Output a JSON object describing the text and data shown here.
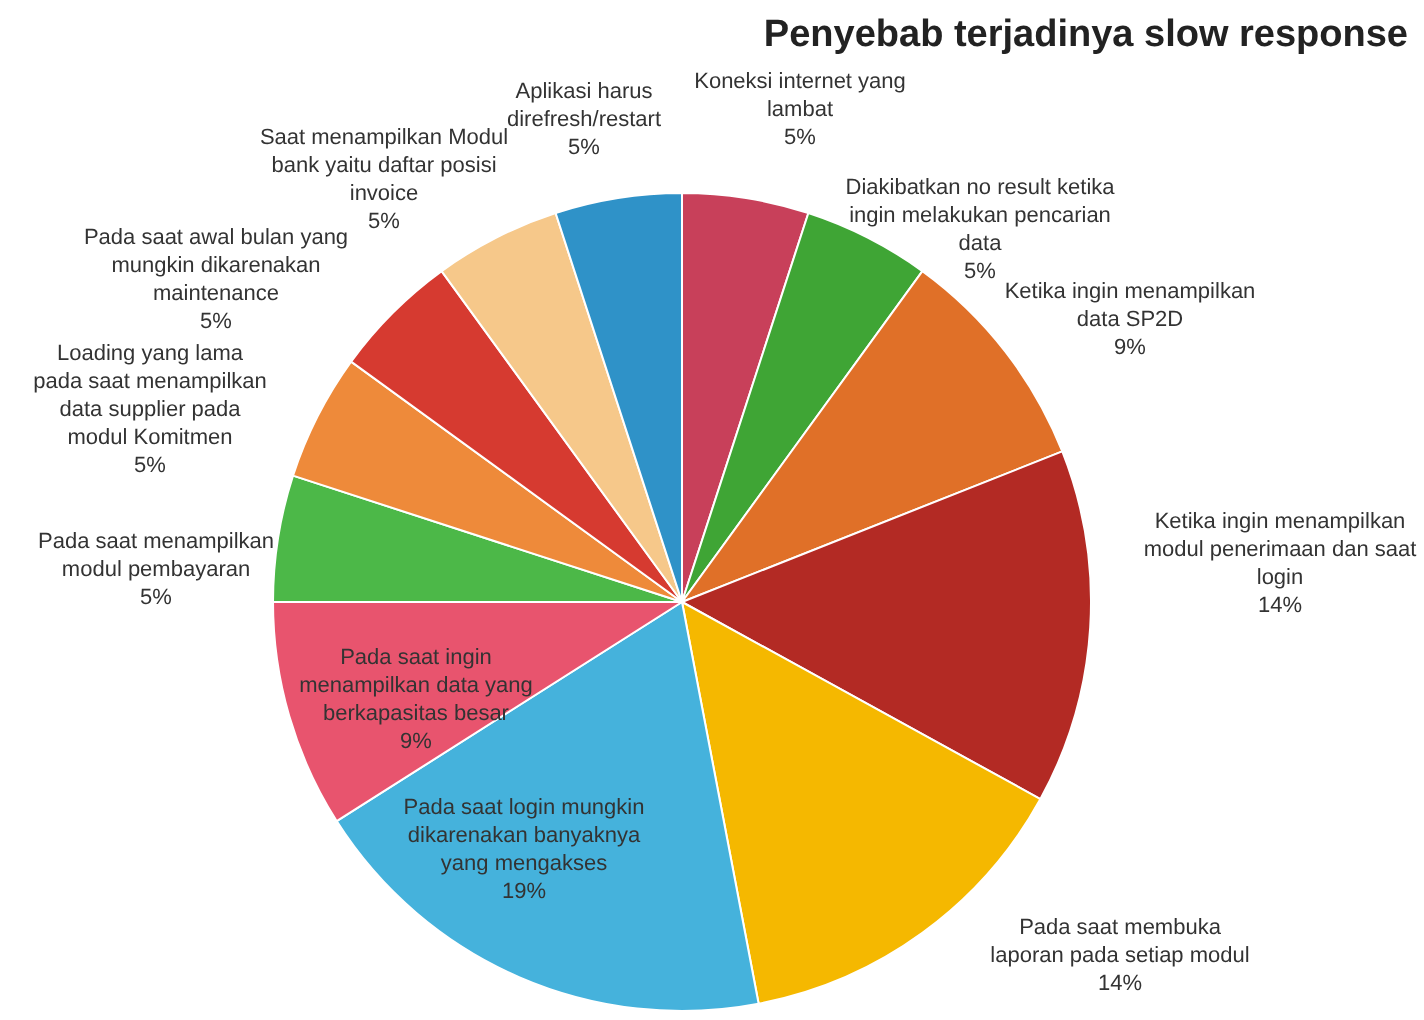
{
  "chart_data": {
    "type": "pie",
    "title": "Penyebab terjadinya slow response",
    "categories": [
      "Koneksi internet yang lambat",
      "Diakibatkan no result ketika ingin melakukan pencarian data",
      "Ketika ingin menampilkan data SP2D",
      "Ketika ingin menampilkan modul penerimaan dan saat login",
      "Pada saat membuka laporan pada setiap modul",
      "Pada saat login mungkin dikarenakan banyaknya yang mengakses",
      "Pada saat ingin menampilkan data yang berkapasitas besar",
      "Pada saat menampilkan modul pembayaran",
      "Loading yang lama pada saat menampilkan data supplier pada modul Komitmen",
      "Pada saat awal bulan yang mungkin dikarenakan maintenance",
      "Saat menampilkan Modul bank yaitu daftar posisi invoice",
      "Aplikasi harus direfresh/restart"
    ],
    "values": [
      5,
      5,
      9,
      14,
      14,
      19,
      9,
      5,
      5,
      5,
      5,
      5
    ],
    "value_labels": [
      "5%",
      "5%",
      "9%",
      "14%",
      "14%",
      "19%",
      "9%",
      "5%",
      "5%",
      "5%",
      "5%",
      "5%"
    ],
    "colors": [
      "#c8405a",
      "#3fa535",
      "#e07028",
      "#b32a24",
      "#f5b800",
      "#45b2dc",
      "#e8546e",
      "#4cb848",
      "#ee8a3a",
      "#d63a30",
      "#f6c88a",
      "#2f92c8"
    ],
    "legend": false
  }
}
